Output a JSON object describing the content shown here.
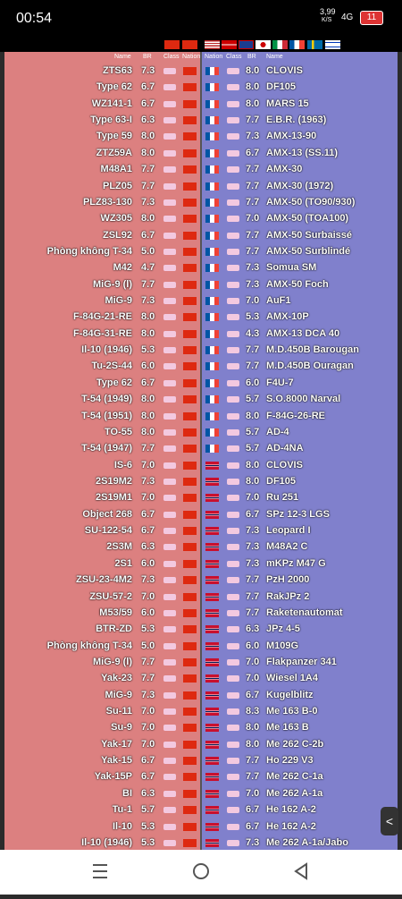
{
  "status": {
    "time": "00:54",
    "speed": "3,99",
    "speed_unit": "K/S",
    "network": "4G",
    "battery": "11"
  },
  "left_header": [
    "Name",
    "BR",
    "Class",
    "Nation"
  ],
  "right_header": [
    "Nation",
    "Class",
    "BR",
    "Name"
  ],
  "rows": [
    {
      "left_name": "ZTS63",
      "left_br": "7.3",
      "right_br": "8.0",
      "right_name": "CLOVIS"
    },
    {
      "left_name": "Type 62",
      "left_br": "6.7",
      "right_br": "8.0",
      "right_name": "DF105"
    },
    {
      "left_name": "WZ141-1",
      "left_br": "6.7",
      "right_br": "8.0",
      "right_name": "MARS 15"
    },
    {
      "left_name": "Type 63-I",
      "left_br": "6.3",
      "right_br": "7.7",
      "right_name": "E.B.R. (1963)"
    },
    {
      "left_name": "Type 59",
      "left_br": "8.0",
      "right_br": "7.3",
      "right_name": "AMX-13-90"
    },
    {
      "left_name": "ZTZ59A",
      "left_br": "8.0",
      "right_br": "6.7",
      "right_name": "AMX-13 (SS.11)"
    },
    {
      "left_name": "M48A1",
      "left_br": "7.7",
      "right_br": "7.7",
      "right_name": "AMX-30"
    },
    {
      "left_name": "PLZ05",
      "left_br": "7.7",
      "right_br": "7.7",
      "right_name": "AMX-30 (1972)"
    },
    {
      "left_name": "PLZ83-130",
      "left_br": "7.3",
      "right_br": "7.7",
      "right_name": "AMX-50 (TO90/930)"
    },
    {
      "left_name": "WZ305",
      "left_br": "8.0",
      "right_br": "7.0",
      "right_name": "AMX-50 (TOA100)"
    },
    {
      "left_name": "ZSL92",
      "left_br": "6.7",
      "right_br": "7.7",
      "right_name": "AMX-50 Surbaissé"
    },
    {
      "left_name": "Phòng không T-34",
      "left_br": "5.0",
      "right_br": "7.7",
      "right_name": "AMX-50 Surblindé"
    },
    {
      "left_name": "M42",
      "left_br": "4.7",
      "right_br": "7.3",
      "right_name": "Somua SM"
    },
    {
      "left_name": "MiG-9 (l)",
      "left_br": "7.7",
      "right_br": "7.3",
      "right_name": "AMX-50 Foch"
    },
    {
      "left_name": "MiG-9",
      "left_br": "7.3",
      "right_br": "7.0",
      "right_name": "AuF1"
    },
    {
      "left_name": "F-84G-21-RE",
      "left_br": "8.0",
      "right_br": "5.3",
      "right_name": "AMX-10P"
    },
    {
      "left_name": "F-84G-31-RE",
      "left_br": "8.0",
      "right_br": "4.3",
      "right_name": "AMX-13 DCA 40"
    },
    {
      "left_name": "Il-10 (1946)",
      "left_br": "5.3",
      "right_br": "7.7",
      "right_name": "M.D.450B Barougan"
    },
    {
      "left_name": "Tu-2S-44",
      "left_br": "6.0",
      "right_br": "7.7",
      "right_name": "M.D.450B Ouragan"
    },
    {
      "left_name": "Type 62",
      "left_br": "6.7",
      "right_br": "6.0",
      "right_name": "F4U-7"
    },
    {
      "left_name": "T-54 (1949)",
      "left_br": "8.0",
      "right_br": "5.7",
      "right_name": "S.O.8000 Narval"
    },
    {
      "left_name": "T-54 (1951)",
      "left_br": "8.0",
      "right_br": "8.0",
      "right_name": "F-84G-26-RE"
    },
    {
      "left_name": "TO-55",
      "left_br": "8.0",
      "right_br": "5.7",
      "right_name": "AD-4"
    },
    {
      "left_name": "T-54 (1947)",
      "left_br": "7.7",
      "right_br": "5.7",
      "right_name": "AD-4NA"
    },
    {
      "left_name": "IS-6",
      "left_br": "7.0",
      "right_br": "8.0",
      "right_name": "CLOVIS"
    },
    {
      "left_name": "2S19M2",
      "left_br": "7.3",
      "right_br": "8.0",
      "right_name": "DF105"
    },
    {
      "left_name": "2S19M1",
      "left_br": "7.0",
      "right_br": "7.0",
      "right_name": "Ru 251"
    },
    {
      "left_name": "Object 268",
      "left_br": "6.7",
      "right_br": "6.7",
      "right_name": "SPz 12-3 LGS"
    },
    {
      "left_name": "SU-122-54",
      "left_br": "6.7",
      "right_br": "7.3",
      "right_name": "Leopard I"
    },
    {
      "left_name": "2S3M",
      "left_br": "6.3",
      "right_br": "7.3",
      "right_name": "M48A2 C"
    },
    {
      "left_name": "2S1",
      "left_br": "6.0",
      "right_br": "7.3",
      "right_name": "mKPz M47 G"
    },
    {
      "left_name": "ZSU-23-4M2",
      "left_br": "7.3",
      "right_br": "7.7",
      "right_name": "PzH 2000"
    },
    {
      "left_name": "ZSU-57-2",
      "left_br": "7.0",
      "right_br": "7.7",
      "right_name": "RakJPz 2"
    },
    {
      "left_name": "M53/59",
      "left_br": "6.0",
      "right_br": "7.7",
      "right_name": "Raketenautomat"
    },
    {
      "left_name": "BTR-ZD",
      "left_br": "5.3",
      "right_br": "6.3",
      "right_name": "JPz 4-5"
    },
    {
      "left_name": "Phòng không T-34",
      "left_br": "5.0",
      "right_br": "6.0",
      "right_name": "M109G"
    },
    {
      "left_name": "MiG-9 (l)",
      "left_br": "7.7",
      "right_br": "7.0",
      "right_name": "Flakpanzer 341"
    },
    {
      "left_name": "Yak-23",
      "left_br": "7.7",
      "right_br": "7.0",
      "right_name": "Wiesel 1A4"
    },
    {
      "left_name": "MiG-9",
      "left_br": "7.3",
      "right_br": "6.7",
      "right_name": "Kugelblitz"
    },
    {
      "left_name": "Su-11",
      "left_br": "7.0",
      "right_br": "8.3",
      "right_name": "Me 163 B-0"
    },
    {
      "left_name": "Su-9",
      "left_br": "7.0",
      "right_br": "8.0",
      "right_name": "Me 163 B"
    },
    {
      "left_name": "Yak-17",
      "left_br": "7.0",
      "right_br": "8.0",
      "right_name": "Me 262 C-2b"
    },
    {
      "left_name": "Yak-15",
      "left_br": "6.7",
      "right_br": "7.7",
      "right_name": "Ho 229 V3"
    },
    {
      "left_name": "Yak-15P",
      "left_br": "6.7",
      "right_br": "7.7",
      "right_name": "Me 262 C-1a"
    },
    {
      "left_name": "BI",
      "left_br": "6.3",
      "right_br": "7.0",
      "right_name": "Me 262 A-1a"
    },
    {
      "left_name": "Tu-1",
      "left_br": "5.7",
      "right_br": "6.7",
      "right_name": "He 162 A-2"
    },
    {
      "left_name": "Il-10",
      "left_br": "5.3",
      "right_br": "6.7",
      "right_name": "He 162 A-2"
    },
    {
      "left_name": "Il-10 (1946)",
      "left_br": "5.3",
      "right_br": "7.3",
      "right_name": "Me 262 A-1a/Jabo"
    }
  ]
}
